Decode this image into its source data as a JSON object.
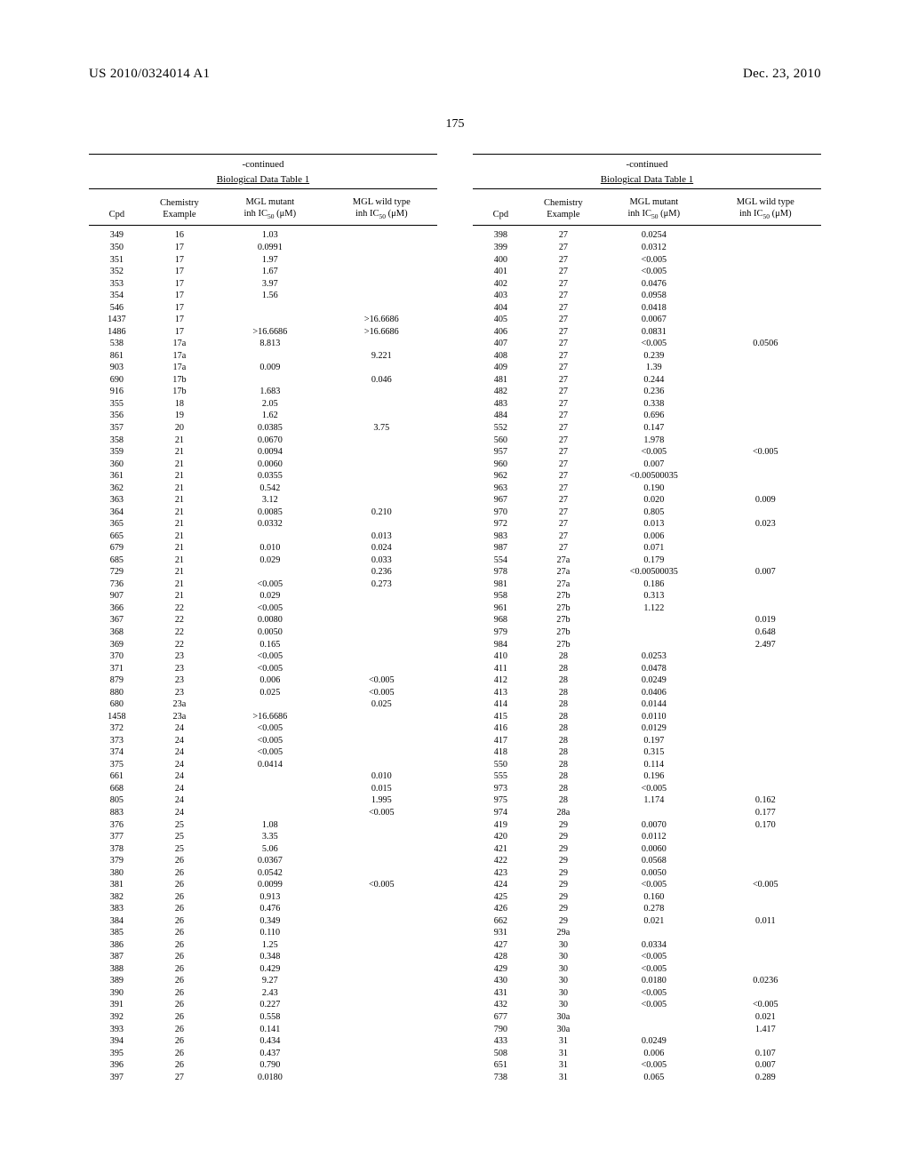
{
  "header": {
    "left": "US 2010/0324014 A1",
    "right": "Dec. 23, 2010"
  },
  "page_number": "175",
  "table_meta": {
    "continued": "-continued",
    "title": "Biological Data Table 1",
    "columns": {
      "cpd": "Cpd",
      "example_line1": "Chemistry",
      "example_line2": "Example",
      "mutant_line1": "MGL mutant",
      "mutant_line2_html": "inh IC<sub>50</sub> (μM)",
      "wild_line1": "MGL wild type",
      "wild_line2_html": "inh IC<sub>50</sub> (μM)"
    }
  },
  "left_rows": [
    [
      "349",
      "16",
      "1.03",
      ""
    ],
    [
      "350",
      "17",
      "0.0991",
      ""
    ],
    [
      "351",
      "17",
      "1.97",
      ""
    ],
    [
      "352",
      "17",
      "1.67",
      ""
    ],
    [
      "353",
      "17",
      "3.97",
      ""
    ],
    [
      "354",
      "17",
      "1.56",
      ""
    ],
    [
      "546",
      "17",
      "",
      ""
    ],
    [
      "1437",
      "17",
      "",
      ">16.6686"
    ],
    [
      "1486",
      "17",
      ">16.6686",
      ">16.6686"
    ],
    [
      "538",
      "17a",
      "8.813",
      ""
    ],
    [
      "861",
      "17a",
      "",
      "9.221"
    ],
    [
      "903",
      "17a",
      "0.009",
      ""
    ],
    [
      "690",
      "17b",
      "",
      "0.046"
    ],
    [
      "916",
      "17b",
      "1.683",
      ""
    ],
    [
      "355",
      "18",
      "2.05",
      ""
    ],
    [
      "356",
      "19",
      "1.62",
      ""
    ],
    [
      "357",
      "20",
      "0.0385",
      "3.75"
    ],
    [
      "358",
      "21",
      "0.0670",
      ""
    ],
    [
      "359",
      "21",
      "0.0094",
      ""
    ],
    [
      "360",
      "21",
      "0.0060",
      ""
    ],
    [
      "361",
      "21",
      "0.0355",
      ""
    ],
    [
      "362",
      "21",
      "0.542",
      ""
    ],
    [
      "363",
      "21",
      "3.12",
      ""
    ],
    [
      "364",
      "21",
      "0.0085",
      "0.210"
    ],
    [
      "365",
      "21",
      "0.0332",
      ""
    ],
    [
      "665",
      "21",
      "",
      "0.013"
    ],
    [
      "679",
      "21",
      "0.010",
      "0.024"
    ],
    [
      "685",
      "21",
      "0.029",
      "0.033"
    ],
    [
      "729",
      "21",
      "",
      "0.236"
    ],
    [
      "736",
      "21",
      "<0.005",
      "0.273"
    ],
    [
      "907",
      "21",
      "0.029",
      ""
    ],
    [
      "366",
      "22",
      "<0.005",
      ""
    ],
    [
      "367",
      "22",
      "0.0080",
      ""
    ],
    [
      "368",
      "22",
      "0.0050",
      ""
    ],
    [
      "369",
      "22",
      "0.165",
      ""
    ],
    [
      "370",
      "23",
      "<0.005",
      ""
    ],
    [
      "371",
      "23",
      "<0.005",
      ""
    ],
    [
      "879",
      "23",
      "0.006",
      "<0.005"
    ],
    [
      "880",
      "23",
      "0.025",
      "<0.005"
    ],
    [
      "680",
      "23a",
      "",
      "0.025"
    ],
    [
      "1458",
      "23a",
      ">16.6686",
      ""
    ],
    [
      "372",
      "24",
      "<0.005",
      ""
    ],
    [
      "373",
      "24",
      "<0.005",
      ""
    ],
    [
      "374",
      "24",
      "<0.005",
      ""
    ],
    [
      "375",
      "24",
      "0.0414",
      ""
    ],
    [
      "661",
      "24",
      "",
      "0.010"
    ],
    [
      "668",
      "24",
      "",
      "0.015"
    ],
    [
      "805",
      "24",
      "",
      "1.995"
    ],
    [
      "883",
      "24",
      "",
      "<0.005"
    ],
    [
      "376",
      "25",
      "1.08",
      ""
    ],
    [
      "377",
      "25",
      "3.35",
      ""
    ],
    [
      "378",
      "25",
      "5.06",
      ""
    ],
    [
      "379",
      "26",
      "0.0367",
      ""
    ],
    [
      "380",
      "26",
      "0.0542",
      ""
    ],
    [
      "381",
      "26",
      "0.0099",
      "<0.005"
    ],
    [
      "382",
      "26",
      "0.913",
      ""
    ],
    [
      "383",
      "26",
      "0.476",
      ""
    ],
    [
      "384",
      "26",
      "0.349",
      ""
    ],
    [
      "385",
      "26",
      "0.110",
      ""
    ],
    [
      "386",
      "26",
      "1.25",
      ""
    ],
    [
      "387",
      "26",
      "0.348",
      ""
    ],
    [
      "388",
      "26",
      "0.429",
      ""
    ],
    [
      "389",
      "26",
      "9.27",
      ""
    ],
    [
      "390",
      "26",
      "2.43",
      ""
    ],
    [
      "391",
      "26",
      "0.227",
      ""
    ],
    [
      "392",
      "26",
      "0.558",
      ""
    ],
    [
      "393",
      "26",
      "0.141",
      ""
    ],
    [
      "394",
      "26",
      "0.434",
      ""
    ],
    [
      "395",
      "26",
      "0.437",
      ""
    ],
    [
      "396",
      "26",
      "0.790",
      ""
    ],
    [
      "397",
      "27",
      "0.0180",
      ""
    ]
  ],
  "right_rows": [
    [
      "398",
      "27",
      "0.0254",
      ""
    ],
    [
      "399",
      "27",
      "0.0312",
      ""
    ],
    [
      "400",
      "27",
      "<0.005",
      ""
    ],
    [
      "401",
      "27",
      "<0.005",
      ""
    ],
    [
      "402",
      "27",
      "0.0476",
      ""
    ],
    [
      "403",
      "27",
      "0.0958",
      ""
    ],
    [
      "404",
      "27",
      "0.0418",
      ""
    ],
    [
      "405",
      "27",
      "0.0067",
      ""
    ],
    [
      "406",
      "27",
      "0.0831",
      ""
    ],
    [
      "407",
      "27",
      "<0.005",
      "0.0506"
    ],
    [
      "408",
      "27",
      "0.239",
      ""
    ],
    [
      "409",
      "27",
      "1.39",
      ""
    ],
    [
      "481",
      "27",
      "0.244",
      ""
    ],
    [
      "482",
      "27",
      "0.236",
      ""
    ],
    [
      "483",
      "27",
      "0.338",
      ""
    ],
    [
      "484",
      "27",
      "0.696",
      ""
    ],
    [
      "552",
      "27",
      "0.147",
      ""
    ],
    [
      "560",
      "27",
      "1.978",
      ""
    ],
    [
      "957",
      "27",
      "<0.005",
      "<0.005"
    ],
    [
      "960",
      "27",
      "0.007",
      ""
    ],
    [
      "962",
      "27",
      "<0.00500035",
      ""
    ],
    [
      "963",
      "27",
      "0.190",
      ""
    ],
    [
      "967",
      "27",
      "0.020",
      "0.009"
    ],
    [
      "970",
      "27",
      "0.805",
      ""
    ],
    [
      "972",
      "27",
      "0.013",
      "0.023"
    ],
    [
      "983",
      "27",
      "0.006",
      ""
    ],
    [
      "987",
      "27",
      "0.071",
      ""
    ],
    [
      "554",
      "27a",
      "0.179",
      ""
    ],
    [
      "978",
      "27a",
      "<0.00500035",
      "0.007"
    ],
    [
      "981",
      "27a",
      "0.186",
      ""
    ],
    [
      "958",
      "27b",
      "0.313",
      ""
    ],
    [
      "961",
      "27b",
      "1.122",
      ""
    ],
    [
      "968",
      "27b",
      "",
      "0.019"
    ],
    [
      "979",
      "27b",
      "",
      "0.648"
    ],
    [
      "984",
      "27b",
      "",
      "2.497"
    ],
    [
      "410",
      "28",
      "0.0253",
      ""
    ],
    [
      "411",
      "28",
      "0.0478",
      ""
    ],
    [
      "412",
      "28",
      "0.0249",
      ""
    ],
    [
      "413",
      "28",
      "0.0406",
      ""
    ],
    [
      "414",
      "28",
      "0.0144",
      ""
    ],
    [
      "415",
      "28",
      "0.0110",
      ""
    ],
    [
      "416",
      "28",
      "0.0129",
      ""
    ],
    [
      "417",
      "28",
      "0.197",
      ""
    ],
    [
      "418",
      "28",
      "0.315",
      ""
    ],
    [
      "550",
      "28",
      "0.114",
      ""
    ],
    [
      "555",
      "28",
      "0.196",
      ""
    ],
    [
      "973",
      "28",
      "<0.005",
      ""
    ],
    [
      "975",
      "28",
      "1.174",
      "0.162"
    ],
    [
      "974",
      "28a",
      "",
      "0.177"
    ],
    [
      "419",
      "29",
      "0.0070",
      "0.170"
    ],
    [
      "420",
      "29",
      "0.0112",
      ""
    ],
    [
      "421",
      "29",
      "0.0060",
      ""
    ],
    [
      "422",
      "29",
      "0.0568",
      ""
    ],
    [
      "423",
      "29",
      "0.0050",
      ""
    ],
    [
      "424",
      "29",
      "<0.005",
      "<0.005"
    ],
    [
      "425",
      "29",
      "0.160",
      ""
    ],
    [
      "426",
      "29",
      "0.278",
      ""
    ],
    [
      "662",
      "29",
      "0.021",
      "0.011"
    ],
    [
      "931",
      "29a",
      "",
      ""
    ],
    [
      "427",
      "30",
      "0.0334",
      ""
    ],
    [
      "428",
      "30",
      "<0.005",
      ""
    ],
    [
      "429",
      "30",
      "<0.005",
      ""
    ],
    [
      "430",
      "30",
      "0.0180",
      "0.0236"
    ],
    [
      "431",
      "30",
      "<0.005",
      ""
    ],
    [
      "432",
      "30",
      "<0.005",
      "<0.005"
    ],
    [
      "677",
      "30a",
      "",
      "0.021"
    ],
    [
      "790",
      "30a",
      "",
      "1.417"
    ],
    [
      "433",
      "31",
      "0.0249",
      ""
    ],
    [
      "508",
      "31",
      "0.006",
      "0.107"
    ],
    [
      "651",
      "31",
      "<0.005",
      "0.007"
    ],
    [
      "738",
      "31",
      "0.065",
      "0.289"
    ]
  ]
}
